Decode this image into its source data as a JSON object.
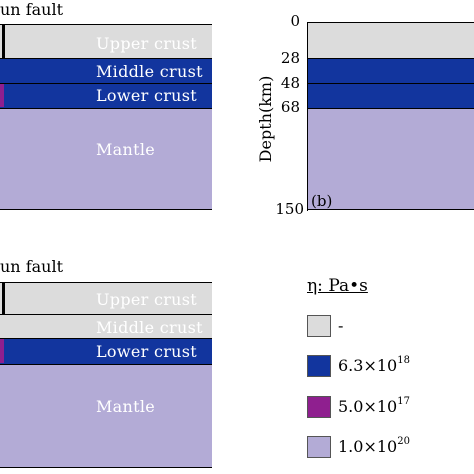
{
  "colors": {
    "upper": "#dcdcdc",
    "middle": "#12359e",
    "lower": "#12359e",
    "mantle": "#b3abd6",
    "purple": "#8f1f8f",
    "white_text": "#ffffff"
  },
  "panel_a": {
    "fault_label": "un fault",
    "layers": {
      "upper": "Upper crust",
      "middle": "Middle crust",
      "lower": "Lower crust",
      "mantle": "Mantle"
    }
  },
  "panel_b": {
    "y_axis_label": "Depth(km)",
    "ticks": [
      "0",
      "28",
      "48",
      "68",
      "150"
    ],
    "tag": "(b)"
  },
  "panel_c": {
    "fault_label": "un fault",
    "layers": {
      "upper": "Upper crust",
      "middle": "Middle crust",
      "lower": "Lower crust",
      "mantle": "Mantle"
    }
  },
  "legend": {
    "title": "η: Pa•s",
    "items": [
      {
        "color": "#dcdcdc",
        "mantissa": "-",
        "exp": ""
      },
      {
        "color": "#12359e",
        "mantissa": "6.3×10",
        "exp": "18"
      },
      {
        "color": "#8f1f8f",
        "mantissa": "5.0×10",
        "exp": "17"
      },
      {
        "color": "#b3abd6",
        "mantissa": "1.0×10",
        "exp": "20"
      }
    ]
  }
}
